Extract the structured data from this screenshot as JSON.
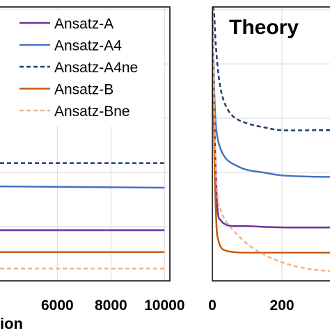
{
  "chart_data": [
    {
      "type": "line",
      "panel": "left",
      "title": "",
      "xlabel": "ion",
      "ylabel": "",
      "xlim": [
        3600,
        10200
      ],
      "ylim": [
        0,
        10
      ],
      "xticks": [
        6000,
        8000,
        10000
      ],
      "grid": true,
      "legend_position": "top-right",
      "series": [
        {
          "name": "Ansatz-A",
          "color": "#7030a0",
          "dash": "solid",
          "x": [
            3600,
            10000
          ],
          "y": [
            1.85,
            1.85
          ]
        },
        {
          "name": "Ansatz-A4",
          "color": "#4472c4",
          "dash": "solid",
          "x": [
            3600,
            10000
          ],
          "y": [
            3.45,
            3.4
          ]
        },
        {
          "name": "Ansatz-A4ne",
          "color": "#1f3f6e",
          "dash": "dashed",
          "x": [
            3600,
            10000
          ],
          "y": [
            4.3,
            4.3
          ]
        },
        {
          "name": "Ansatz-B",
          "color": "#c55a11",
          "dash": "solid",
          "x": [
            3600,
            10000
          ],
          "y": [
            1.05,
            1.05
          ]
        },
        {
          "name": "Ansatz-Bne",
          "color": "#f4b183",
          "dash": "dashed",
          "x": [
            3600,
            10000
          ],
          "y": [
            0.45,
            0.45
          ]
        }
      ]
    },
    {
      "type": "line",
      "panel": "right",
      "title": "Theory",
      "xlabel": "",
      "ylabel": "",
      "xlim": [
        0,
        370
      ],
      "ylim": [
        0,
        10
      ],
      "xticks": [
        0,
        200
      ],
      "grid": true,
      "series": [
        {
          "name": "Ansatz-A",
          "color": "#7030a0",
          "dash": "solid",
          "x": [
            0,
            8,
            15,
            25,
            40,
            60,
            100,
            200,
            370
          ],
          "y": [
            10,
            4.8,
            2.6,
            2.2,
            2.05,
            2.0,
            2.0,
            1.95,
            1.95
          ]
        },
        {
          "name": "Ansatz-A4",
          "color": "#4472c4",
          "dash": "solid",
          "x": [
            0,
            5,
            10,
            20,
            40,
            70,
            100,
            150,
            200,
            300,
            370
          ],
          "y": [
            10,
            7.2,
            5.7,
            4.95,
            4.45,
            4.2,
            4.05,
            3.95,
            3.85,
            3.8,
            3.8
          ]
        },
        {
          "name": "Ansatz-A4ne",
          "color": "#1f3f6e",
          "dash": "dashed",
          "x": [
            0,
            5,
            10,
            20,
            35,
            60,
            100,
            150,
            200,
            300,
            370
          ],
          "y": [
            10,
            9.8,
            8.6,
            7.3,
            6.5,
            6.0,
            5.75,
            5.6,
            5.5,
            5.5,
            5.5
          ]
        },
        {
          "name": "Ansatz-B",
          "color": "#c55a11",
          "dash": "solid",
          "x": [
            0,
            6,
            12,
            18,
            25,
            35,
            60,
            100,
            200,
            370
          ],
          "y": [
            10,
            4.5,
            2.0,
            1.45,
            1.22,
            1.12,
            1.05,
            1.03,
            1.03,
            1.03
          ]
        },
        {
          "name": "Ansatz-Bne",
          "color": "#f4b183",
          "dash": "dashed",
          "x": [
            0,
            8,
            15,
            25,
            40,
            60,
            100,
            150,
            200,
            250,
            300,
            370
          ],
          "y": [
            10,
            5.0,
            3.1,
            2.55,
            2.15,
            1.85,
            1.35,
            0.95,
            0.68,
            0.5,
            0.4,
            0.33
          ]
        }
      ]
    }
  ]
}
